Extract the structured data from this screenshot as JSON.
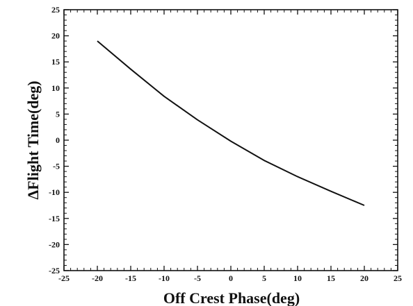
{
  "chart_data": {
    "type": "line",
    "title": "",
    "xlabel": "Off Crest Phase(deg)",
    "ylabel": "ΔFlight Time(deg)",
    "xlim": [
      -25,
      25
    ],
    "ylim": [
      -25,
      25
    ],
    "x_ticks": [
      -25,
      -20,
      -15,
      -10,
      -5,
      0,
      5,
      10,
      15,
      20,
      25
    ],
    "y_ticks": [
      -25,
      -20,
      -15,
      -10,
      -5,
      0,
      5,
      10,
      15,
      20,
      25
    ],
    "grid": false,
    "colors": {
      "line": "#111111",
      "axes": "#111111"
    },
    "series": [
      {
        "x": [
          -20,
          -15,
          -10,
          -5,
          0,
          5,
          10,
          15,
          20
        ],
        "y": [
          19,
          13.6,
          8.4,
          3.9,
          -0.2,
          -3.9,
          -7.0,
          -9.8,
          -12.5
        ]
      }
    ]
  }
}
